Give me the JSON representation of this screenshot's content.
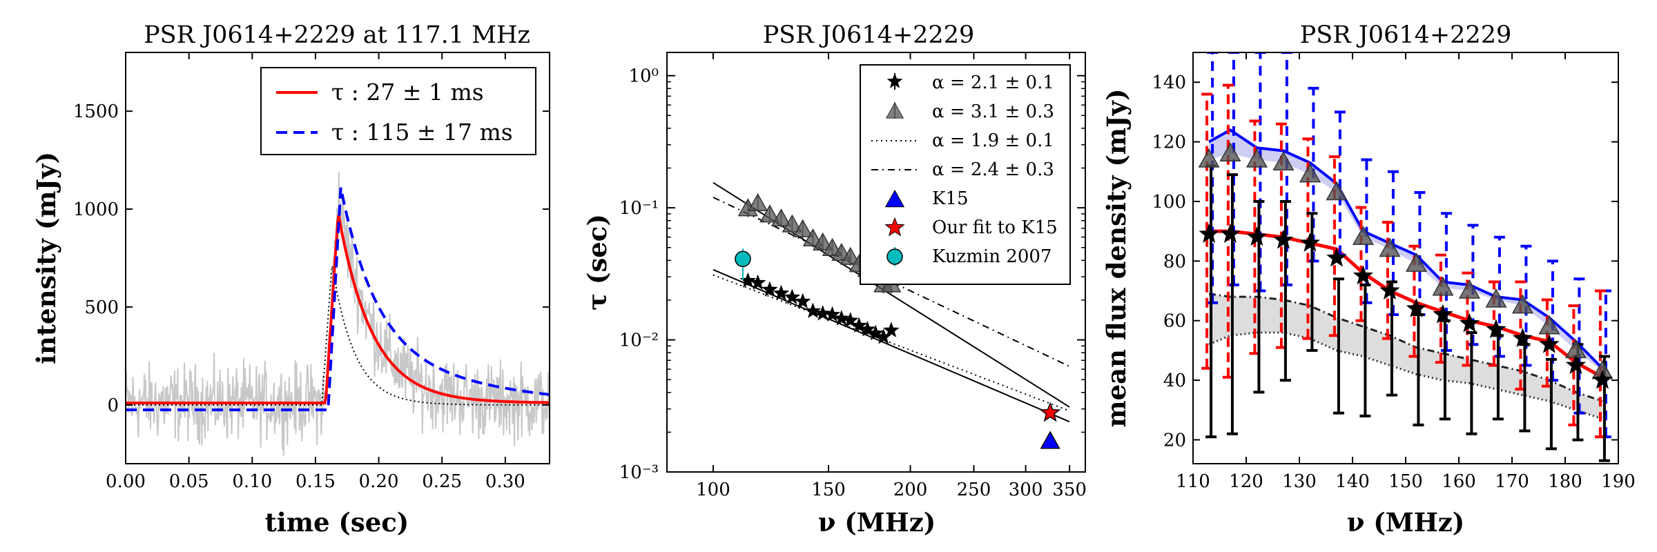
{
  "chart_data": [
    {
      "type": "line",
      "title": "PSR J0614+2229 at 117.1 MHz",
      "xlabel": "time (sec)",
      "ylabel": "intensity (mJy)",
      "xlim": [
        0,
        0.335
      ],
      "ylim": [
        -300,
        1800
      ],
      "xticks": [
        0.0,
        0.05,
        0.1,
        0.15,
        0.2,
        0.25,
        0.3
      ],
      "xtick_labels": [
        "0.00",
        "0.05",
        "0.10",
        "0.15",
        "0.20",
        "0.25",
        "0.30"
      ],
      "yticks": [
        0,
        500,
        1000,
        1500
      ],
      "ytick_labels": [
        "0",
        "500",
        "1000",
        "1500"
      ],
      "legend": [
        {
          "label": "τ : 27 ± 1 ms",
          "color": "#ff0000",
          "style": "solid"
        },
        {
          "label": "τ : 115 ± 17 ms",
          "color": "#0000ff",
          "style": "dashed"
        }
      ],
      "series": [
        {
          "name": "data",
          "color": "#c8c8c8",
          "style": "solid",
          "description": "noisy profile, peak ~1230 mJy near 0.168 s"
        },
        {
          "name": "τ : 27 ± 1 ms",
          "color": "#ff0000",
          "baseline": 10,
          "onset": 0.158,
          "peak_time": 0.168,
          "peak": 980,
          "tau": 0.027
        },
        {
          "name": "τ : 115 ± 17 ms",
          "color": "#0000ff",
          "baseline": -25,
          "onset": 0.16,
          "peak_time": 0.17,
          "peak": 1110,
          "tau_scale": 0.055,
          "tau_slow": 0.115
        },
        {
          "name": "intrinsic",
          "color": "#000000",
          "style": "dotted",
          "onset": 0.155,
          "peak_time": 0.163,
          "peak": 720
        }
      ]
    },
    {
      "type": "scatter",
      "title": "PSR J0614+2229",
      "xlabel": "ν (MHz)",
      "ylabel": "τ (sec)",
      "xscale": "log",
      "yscale": "log",
      "xlim": [
        85,
        370
      ],
      "ylim": [
        0.001,
        1.5
      ],
      "xticks": [
        100,
        150,
        200,
        250,
        300,
        350
      ],
      "xtick_labels": [
        "100",
        "150",
        "200",
        "250",
        "300",
        "350"
      ],
      "yticks": [
        0.001,
        0.01,
        0.1,
        1
      ],
      "ytick_labels": [
        "10⁻³",
        "10⁻²",
        "10⁻¹",
        "10⁰"
      ],
      "legend": [
        {
          "label": "α = 2.1 ± 0.1",
          "marker": "star",
          "color": "#000000"
        },
        {
          "label": "α = 3.1 ± 0.3",
          "marker": "triangle",
          "color": "#555555"
        },
        {
          "label": "α = 1.9 ± 0.1",
          "style": "dotted"
        },
        {
          "label": "α = 2.4 ± 0.3",
          "style": "dashdot"
        },
        {
          "label": "K15",
          "marker": "triangle",
          "color": "#0000ff"
        },
        {
          "label": "Our fit to K15",
          "marker": "star",
          "color": "#ff0000"
        },
        {
          "label": "Kuzmin 2007",
          "marker": "circle",
          "color": "#00b5b5"
        }
      ],
      "star_points": {
        "x": [
          113,
          117,
          122,
          127,
          132,
          137,
          142,
          147,
          152,
          157,
          162,
          167,
          172,
          177,
          182,
          187
        ],
        "y": [
          0.028,
          0.027,
          0.024,
          0.0225,
          0.021,
          0.0195,
          0.0165,
          0.0158,
          0.0155,
          0.0145,
          0.014,
          0.0128,
          0.012,
          0.0112,
          0.0105,
          0.0118
        ]
      },
      "triangle_points": {
        "x": [
          113,
          117,
          122,
          127,
          132,
          137,
          142,
          147,
          152,
          157,
          162,
          167,
          172,
          177,
          182,
          187
        ],
        "y": [
          0.098,
          0.107,
          0.088,
          0.082,
          0.074,
          0.068,
          0.058,
          0.054,
          0.049,
          0.045,
          0.042,
          0.037,
          0.034,
          0.03,
          0.026,
          0.026
        ]
      },
      "K15": {
        "x": 327,
        "y": 0.0017
      },
      "our_fit_K15": {
        "x": 327,
        "y": 0.0028
      },
      "kuzmin_2007": {
        "x": 111,
        "y": 0.041,
        "yerr": 0.008
      },
      "fit_lines": [
        {
          "label": "α = 2.1 ± 0.1",
          "style": "solid",
          "x": [
            100,
            350
          ],
          "y": [
            0.034,
            0.0024
          ]
        },
        {
          "label": "α = 3.1 ± 0.3",
          "style": "solid",
          "x": [
            100,
            350
          ],
          "y": [
            0.155,
            0.0031
          ]
        },
        {
          "label": "α = 1.9 ± 0.1",
          "style": "dotted",
          "x": [
            100,
            350
          ],
          "y": [
            0.031,
            0.0029
          ]
        },
        {
          "label": "α = 2.4 ± 0.3",
          "style": "dashdot",
          "x": [
            100,
            350
          ],
          "y": [
            0.12,
            0.0063
          ]
        }
      ]
    },
    {
      "type": "line",
      "title": "PSR J0614+2229",
      "xlabel": "ν (MHz)",
      "ylabel": "mean flux density (mJy)",
      "xlim": [
        110,
        190
      ],
      "ylim": [
        12,
        150
      ],
      "xticks": [
        110,
        120,
        130,
        140,
        150,
        160,
        170,
        180,
        190
      ],
      "xtick_labels": [
        "110",
        "120",
        "130",
        "140",
        "150",
        "160",
        "170",
        "180",
        "190"
      ],
      "yticks": [
        20,
        40,
        60,
        80,
        100,
        120,
        140
      ],
      "ytick_labels": [
        "20",
        "40",
        "60",
        "80",
        "100",
        "120",
        "140"
      ],
      "x": [
        113,
        117,
        122,
        127,
        132,
        137,
        142,
        147,
        152,
        157,
        162,
        167,
        172,
        177,
        182,
        187
      ],
      "series": [
        {
          "name": "blue curve",
          "color": "#0000ff",
          "values": [
            120,
            124,
            118,
            117,
            113,
            106,
            90,
            86,
            82,
            73,
            72,
            68,
            67,
            61,
            53,
            44
          ]
        },
        {
          "name": "triangles",
          "color": "#555555",
          "values": [
            114,
            116,
            114,
            113,
            109,
            103,
            88,
            84,
            79,
            71,
            70,
            67,
            65,
            58,
            50,
            43
          ]
        },
        {
          "name": "red curve",
          "color": "#ff0000",
          "values": [
            90,
            90,
            89,
            88,
            86,
            84,
            76,
            70,
            66,
            63,
            60,
            58,
            55,
            53,
            46,
            41
          ]
        },
        {
          "name": "stars",
          "color": "#000000",
          "values": [
            89,
            89,
            88,
            87,
            86,
            81,
            75,
            70,
            64,
            62,
            59,
            57,
            54,
            52,
            45,
            40
          ]
        },
        {
          "name": "dashed grey",
          "color": "#222222",
          "style": "dashdot",
          "values": [
            69,
            68,
            68,
            67,
            65,
            61,
            58,
            55,
            51,
            49,
            47,
            45,
            43,
            40,
            36,
            33
          ]
        },
        {
          "name": "dotted grey",
          "color": "#222222",
          "style": "dotted",
          "values": [
            52,
            55,
            56,
            56,
            54,
            50,
            48,
            45,
            42,
            40,
            39,
            37,
            35,
            33,
            30,
            27
          ]
        }
      ],
      "red_errors": [
        [
          44,
          136
        ],
        [
          41,
          139
        ],
        [
          49,
          127
        ],
        [
          51,
          126
        ],
        [
          54,
          121
        ],
        [
          55,
          115
        ],
        [
          60,
          98
        ],
        [
          54,
          93
        ],
        [
          48,
          85
        ],
        [
          46,
          82
        ],
        [
          45,
          76
        ],
        [
          45,
          73
        ],
        [
          37,
          73
        ],
        [
          38,
          67
        ],
        [
          25,
          65
        ],
        [
          21,
          70
        ]
      ],
      "blue_errors": [
        [
          66,
          150
        ],
        [
          72,
          150
        ],
        [
          70,
          150
        ],
        [
          72,
          150
        ],
        [
          80,
          138
        ],
        [
          82,
          130
        ],
        [
          66,
          114
        ],
        [
          62,
          110
        ],
        [
          62,
          103
        ],
        [
          50,
          96
        ],
        [
          52,
          92
        ],
        [
          48,
          88
        ],
        [
          45,
          85
        ],
        [
          40,
          80
        ],
        [
          29,
          74
        ],
        [
          21,
          70
        ]
      ],
      "black_errors": [
        [
          21,
          112
        ],
        [
          22,
          109
        ],
        [
          36,
          100
        ],
        [
          40,
          100
        ],
        [
          50,
          96
        ],
        [
          29,
          74
        ],
        [
          28,
          72
        ],
        [
          35,
          73
        ],
        [
          25,
          62
        ],
        [
          27,
          60
        ],
        [
          22,
          56
        ],
        [
          27,
          55
        ],
        [
          23,
          52
        ],
        [
          17,
          47
        ],
        [
          20,
          52
        ],
        [
          13,
          48
        ]
      ]
    }
  ]
}
